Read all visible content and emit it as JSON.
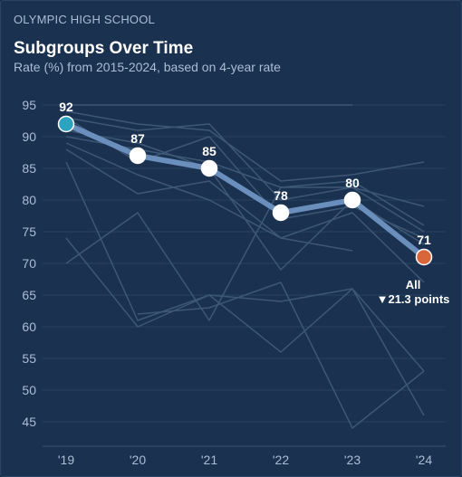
{
  "header": {
    "school": "OLYMPIC HIGH SCHOOL",
    "title": "Subgroups Over Time",
    "subtitle": "Rate (%) from 2015-2024, based on 4-year rate"
  },
  "colors": {
    "background": "#1b3150",
    "main_line": "#6a8fbc",
    "first_point": "#2aa4bf",
    "last_point": "#d9653a",
    "subgroup_lines": "#3d5876"
  },
  "chart_data": {
    "type": "line",
    "categories": [
      "'19",
      "'20",
      "'21",
      "'22",
      "'23",
      "'24"
    ],
    "yticks": [
      95,
      90,
      85,
      80,
      75,
      70,
      65,
      60,
      55,
      50,
      45
    ],
    "ylim": [
      42.5,
      96.5
    ],
    "grid": true,
    "main_series": {
      "values": [
        92,
        87,
        85,
        78,
        80,
        71
      ],
      "labels": [
        "92",
        "87",
        "85",
        "78",
        "80",
        "71"
      ]
    },
    "annotation": {
      "name": "All",
      "change": "▼21.3 points"
    },
    "background_series": [
      {
        "values": [
          94,
          92,
          91,
          83,
          84,
          86
        ]
      },
      {
        "values": [
          93,
          91,
          92,
          80,
          82,
          79
        ]
      },
      {
        "values": [
          90,
          88,
          86,
          82,
          83,
          76
        ]
      },
      {
        "values": [
          89,
          84,
          80,
          74,
          78,
          67
        ]
      },
      {
        "values": [
          88,
          81,
          83,
          74,
          72,
          null
        ]
      },
      {
        "values": [
          86,
          61,
          65,
          64,
          66,
          53
        ]
      },
      {
        "values": [
          70,
          78,
          61,
          82,
          82,
          75
        ]
      },
      {
        "values": [
          74,
          60,
          65,
          56,
          66,
          46
        ]
      },
      {
        "values": [
          null,
          62,
          63,
          67,
          44,
          53
        ]
      },
      {
        "values": [
          95,
          95,
          95,
          95,
          95,
          null
        ]
      },
      {
        "values": [
          91,
          89,
          85,
          69,
          80,
          73
        ]
      },
      {
        "values": [
          93,
          86,
          90,
          77,
          79,
          74
        ]
      }
    ]
  }
}
